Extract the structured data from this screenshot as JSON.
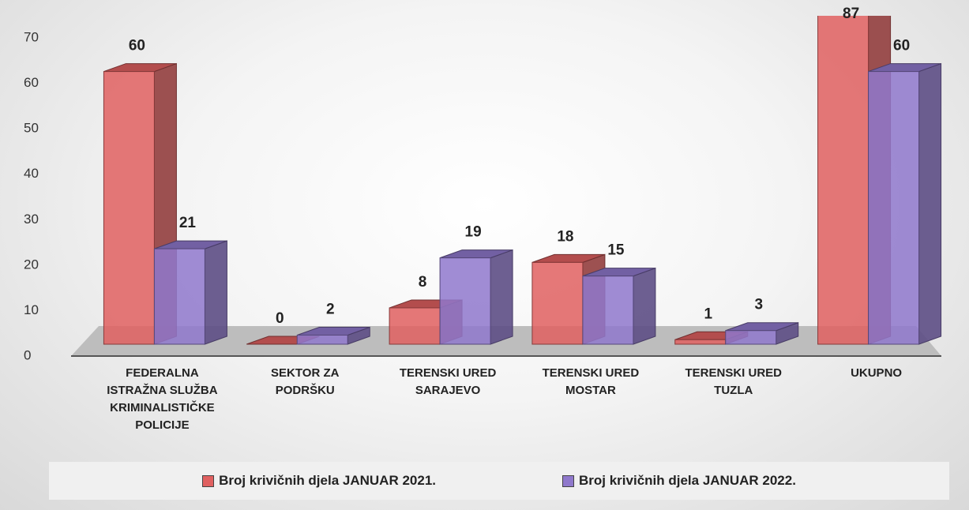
{
  "chart_data": {
    "type": "bar3d",
    "categories": [
      "FEDERALNA ISTRAŽNA SLUŽBA KRIMINALISTIČKE POLICIJE",
      "SEKTOR ZA PODRŠKU",
      "TERENSKI URED SARAJEVO",
      "TERENSKI URED MOSTAR",
      "TERENSKI URED TUZLA",
      "UKUPNO"
    ],
    "series": [
      {
        "name": "Broj krivičnih djela JANUAR 2021.",
        "color": "#e06060",
        "values": [
          60,
          0,
          8,
          18,
          1,
          87
        ]
      },
      {
        "name": "Broj krivičnih djela JANUAR 2022.",
        "color": "#8f78cc",
        "values": [
          21,
          2,
          19,
          15,
          3,
          60
        ]
      }
    ],
    "ylim": [
      0,
      70
    ],
    "yticks": [
      0,
      10,
      20,
      30,
      40,
      50,
      60,
      70
    ],
    "grid": false,
    "legend": "bottom"
  }
}
